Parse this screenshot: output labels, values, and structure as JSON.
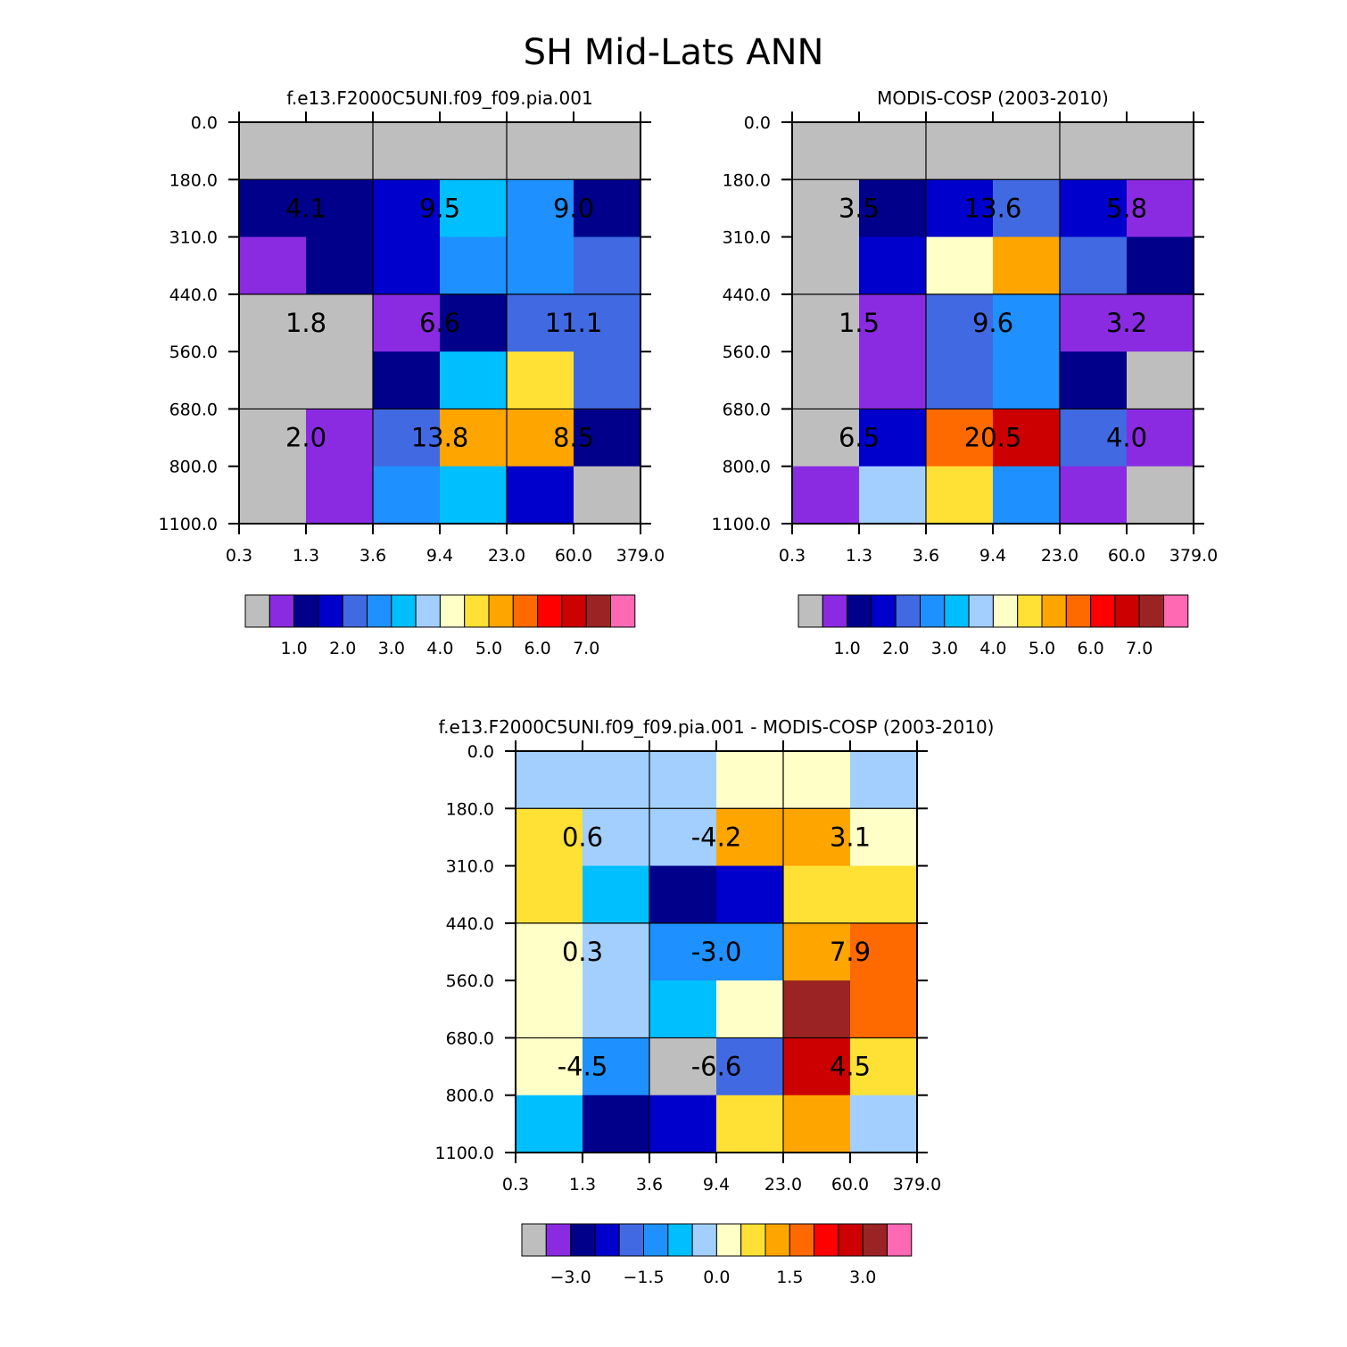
{
  "figure": {
    "title": "SH Mid-Lats ANN"
  },
  "chart_data": [
    {
      "type": "heatmap",
      "title": "f.e13.F2000C5UNI.f09_f09.pia.001",
      "x_tick_labels": [
        "0.3",
        "1.3",
        "3.6",
        "9.4",
        "23.0",
        "60.0",
        "379.0"
      ],
      "y_tick_labels": [
        "0.0",
        "180.0",
        "310.0",
        "440.0",
        "560.0",
        "680.0",
        "800.0",
        "1100.0"
      ],
      "cell_colors": [
        [
          "#bebebe",
          "#bebebe",
          "#bebebe",
          "#bebebe",
          "#bebebe",
          "#bebebe"
        ],
        [
          "#00008b",
          "#00008b",
          "#0000cd",
          "#00bfff",
          "#1e90ff",
          "#00008b"
        ],
        [
          "#8a2be2",
          "#00008b",
          "#0000cd",
          "#1e90ff",
          "#1e90ff",
          "#4169e1"
        ],
        [
          "#bebebe",
          "#bebebe",
          "#8a2be2",
          "#00008b",
          "#4169e1",
          "#4169e1"
        ],
        [
          "#bebebe",
          "#bebebe",
          "#00008b",
          "#00bfff",
          "#ffe135",
          "#4169e1"
        ],
        [
          "#bebebe",
          "#8a2be2",
          "#4169e1",
          "#ffa500",
          "#ffa500",
          "#00008b"
        ],
        [
          "#bebebe",
          "#8a2be2",
          "#1e90ff",
          "#00bfff",
          "#0000cd",
          "#bebebe"
        ]
      ],
      "group_labels": [
        [
          "4.1",
          "9.5",
          "9.0"
        ],
        [
          "1.8",
          "6.6",
          "11.1"
        ],
        [
          "2.0",
          "13.8",
          "8.5"
        ]
      ],
      "colorbar": {
        "colors": [
          "#bebebe",
          "#8a2be2",
          "#00008b",
          "#0000cd",
          "#4169e1",
          "#1e90ff",
          "#00bfff",
          "#a2cffe",
          "#ffffc8",
          "#ffe135",
          "#ffa500",
          "#ff6a00",
          "#ff0000",
          "#cd0000",
          "#9b2323",
          "#ff69b4"
        ],
        "labels": [
          {
            "text": "1.0",
            "after_box": 2
          },
          {
            "text": "2.0",
            "after_box": 4
          },
          {
            "text": "3.0",
            "after_box": 6
          },
          {
            "text": "4.0",
            "after_box": 8
          },
          {
            "text": "5.0",
            "after_box": 10
          },
          {
            "text": "6.0",
            "after_box": 12
          },
          {
            "text": "7.0",
            "after_box": 14
          }
        ]
      }
    },
    {
      "type": "heatmap",
      "title": "MODIS-COSP (2003-2010)",
      "x_tick_labels": [
        "0.3",
        "1.3",
        "3.6",
        "9.4",
        "23.0",
        "60.0",
        "379.0"
      ],
      "y_tick_labels": [
        "0.0",
        "180.0",
        "310.0",
        "440.0",
        "560.0",
        "680.0",
        "800.0",
        "1100.0"
      ],
      "cell_colors": [
        [
          "#bebebe",
          "#bebebe",
          "#bebebe",
          "#bebebe",
          "#bebebe",
          "#bebebe"
        ],
        [
          "#bebebe",
          "#00008b",
          "#0000cd",
          "#4169e1",
          "#0000cd",
          "#8a2be2"
        ],
        [
          "#bebebe",
          "#0000cd",
          "#ffffc8",
          "#ffa500",
          "#4169e1",
          "#00008b"
        ],
        [
          "#bebebe",
          "#8a2be2",
          "#4169e1",
          "#1e90ff",
          "#8a2be2",
          "#8a2be2"
        ],
        [
          "#bebebe",
          "#8a2be2",
          "#4169e1",
          "#1e90ff",
          "#00008b",
          "#bebebe"
        ],
        [
          "#bebebe",
          "#0000cd",
          "#ff6a00",
          "#cd0000",
          "#4169e1",
          "#8a2be2"
        ],
        [
          "#8a2be2",
          "#a2cffe",
          "#ffe135",
          "#1e90ff",
          "#8a2be2",
          "#bebebe"
        ]
      ],
      "group_labels": [
        [
          "3.5",
          "13.6",
          "5.8"
        ],
        [
          "1.5",
          "9.6",
          "3.2"
        ],
        [
          "6.5",
          "20.5",
          "4.0"
        ]
      ],
      "colorbar": {
        "colors": [
          "#bebebe",
          "#8a2be2",
          "#00008b",
          "#0000cd",
          "#4169e1",
          "#1e90ff",
          "#00bfff",
          "#a2cffe",
          "#ffffc8",
          "#ffe135",
          "#ffa500",
          "#ff6a00",
          "#ff0000",
          "#cd0000",
          "#9b2323",
          "#ff69b4"
        ],
        "labels": [
          {
            "text": "1.0",
            "after_box": 2
          },
          {
            "text": "2.0",
            "after_box": 4
          },
          {
            "text": "3.0",
            "after_box": 6
          },
          {
            "text": "4.0",
            "after_box": 8
          },
          {
            "text": "5.0",
            "after_box": 10
          },
          {
            "text": "6.0",
            "after_box": 12
          },
          {
            "text": "7.0",
            "after_box": 14
          }
        ]
      }
    },
    {
      "type": "heatmap",
      "title": "f.e13.F2000C5UNI.f09_f09.pia.001 - MODIS-COSP (2003-2010)",
      "x_tick_labels": [
        "0.3",
        "1.3",
        "3.6",
        "9.4",
        "23.0",
        "60.0",
        "379.0"
      ],
      "y_tick_labels": [
        "0.0",
        "180.0",
        "310.0",
        "440.0",
        "560.0",
        "680.0",
        "800.0",
        "1100.0"
      ],
      "cell_colors": [
        [
          "#a2cffe",
          "#a2cffe",
          "#a2cffe",
          "#ffffc8",
          "#ffffc8",
          "#a2cffe"
        ],
        [
          "#ffe135",
          "#a2cffe",
          "#a2cffe",
          "#ffa500",
          "#ffa500",
          "#ffffc8"
        ],
        [
          "#ffe135",
          "#00bfff",
          "#00008b",
          "#0000cd",
          "#ffe135",
          "#ffe135"
        ],
        [
          "#ffffc8",
          "#a2cffe",
          "#1e90ff",
          "#1e90ff",
          "#ffa500",
          "#ff6a00"
        ],
        [
          "#ffffc8",
          "#a2cffe",
          "#00bfff",
          "#ffffc8",
          "#9b2323",
          "#ff6a00"
        ],
        [
          "#ffffc8",
          "#1e90ff",
          "#bebebe",
          "#4169e1",
          "#cd0000",
          "#ffe135"
        ],
        [
          "#00bfff",
          "#00008b",
          "#0000cd",
          "#ffe135",
          "#ffa500",
          "#a2cffe"
        ]
      ],
      "group_labels": [
        [
          "0.6",
          "-4.2",
          "3.1"
        ],
        [
          "0.3",
          "-3.0",
          "7.9"
        ],
        [
          "-4.5",
          "-6.6",
          "4.5"
        ]
      ],
      "colorbar": {
        "colors": [
          "#bebebe",
          "#8a2be2",
          "#00008b",
          "#0000cd",
          "#4169e1",
          "#1e90ff",
          "#00bfff",
          "#a2cffe",
          "#ffffc8",
          "#ffe135",
          "#ffa500",
          "#ff6a00",
          "#ff0000",
          "#cd0000",
          "#9b2323",
          "#ff69b4"
        ],
        "labels": [
          {
            "text": "−3.0",
            "after_box": 2
          },
          {
            "text": "−1.5",
            "after_box": 5
          },
          {
            "text": "0.0",
            "after_box": 8
          },
          {
            "text": "1.5",
            "after_box": 11
          },
          {
            "text": "3.0",
            "after_box": 14
          }
        ]
      }
    }
  ]
}
